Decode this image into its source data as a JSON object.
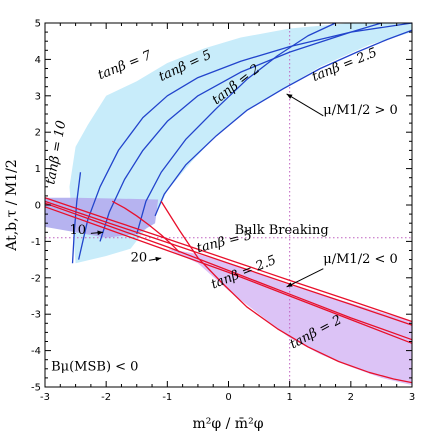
{
  "chart_data": {
    "type": "line",
    "xlabel": "m²φ / m̄²φ",
    "ylabel": "At,b,τ / M1/2",
    "xlim": [
      -3,
      3
    ],
    "ylim": [
      -5,
      5
    ],
    "xticks": [
      -3,
      -2,
      -1,
      0,
      1,
      2,
      3
    ],
    "yticks": [
      -5,
      -4,
      -3,
      -2,
      -1,
      0,
      1,
      2,
      3,
      4,
      5
    ],
    "colors": {
      "cyan_fill": "#c8ecfa",
      "violet_fill_1": "#b6b3f0",
      "violet_fill_2": "#dcc3f6",
      "blue_line": "#2244cc",
      "red_line": "#e8102c",
      "guide": "#c060c0"
    },
    "series": [
      {
        "group": "mu_over_M_positive",
        "label": "tanβ = 10",
        "x": [
          -2.55,
          -2.52,
          -2.48,
          -2.42
        ],
        "y": [
          -1.6,
          -0.7,
          0.1,
          0.9
        ]
      },
      {
        "group": "mu_over_M_positive",
        "label": "tanβ = 7",
        "x": [
          -2.45,
          -2.3,
          -2.1,
          -1.8,
          -1.4,
          -1.0,
          -0.5,
          0.2,
          1.0,
          2.0,
          3.0
        ],
        "y": [
          -1.5,
          -0.4,
          0.5,
          1.5,
          2.4,
          3.0,
          3.5,
          3.95,
          4.35,
          4.75,
          5.0
        ]
      },
      {
        "group": "mu_over_M_positive",
        "label": "tanβ = 5",
        "x": [
          -2.1,
          -1.95,
          -1.7,
          -1.4,
          -1.0,
          -0.5,
          0.2,
          1.0,
          2.0,
          2.5
        ],
        "y": [
          -1.0,
          -0.2,
          0.7,
          1.5,
          2.3,
          3.0,
          3.65,
          4.2,
          4.75,
          5.0
        ]
      },
      {
        "group": "mu_over_M_positive",
        "label": "tanβ = 2",
        "x": [
          -1.5,
          -1.35,
          -1.1,
          -0.7,
          -0.2,
          0.3,
          0.8,
          1.3,
          1.75
        ],
        "y": [
          -0.8,
          0.1,
          0.9,
          1.8,
          2.65,
          3.45,
          4.1,
          4.65,
          5.0
        ]
      },
      {
        "group": "mu_over_M_positive",
        "label": "tanβ = 2.5",
        "x": [
          -1.2,
          -1.05,
          -0.7,
          -0.2,
          0.3,
          0.9,
          1.5,
          2.1,
          2.6,
          3.0
        ],
        "y": [
          -0.3,
          0.3,
          1.1,
          1.9,
          2.6,
          3.2,
          3.75,
          4.2,
          4.55,
          4.8
        ]
      },
      {
        "group": "mu_over_M_negative",
        "label": "tanβ = 5",
        "x": [
          -3.0,
          -2.0,
          -1.0,
          0.0,
          1.0,
          2.0,
          3.0
        ],
        "y": [
          0.2,
          -0.37,
          -0.93,
          -1.5,
          -2.07,
          -2.63,
          -3.2
        ]
      },
      {
        "group": "mu_over_M_negative",
        "label": "tanβ = 5",
        "x": [
          -3.0,
          -2.0,
          -1.0,
          0.0,
          1.0,
          2.0,
          3.0
        ],
        "y": [
          0.1,
          -0.47,
          -1.03,
          -1.6,
          -2.17,
          -2.73,
          -3.3
        ]
      },
      {
        "group": "mu_over_M_negative",
        "label": "tanβ = 2.5",
        "x": [
          -3.0,
          -2.0,
          -1.0,
          0.0,
          1.0,
          2.0,
          3.0
        ],
        "y": [
          0.05,
          -0.55,
          -1.15,
          -1.8,
          -2.45,
          -3.1,
          -3.7
        ]
      },
      {
        "group": "mu_over_M_negative",
        "label": "tanβ = 2.5",
        "x": [
          -3.0,
          -2.0,
          -1.0,
          0.0,
          1.0,
          2.0,
          3.0
        ],
        "y": [
          -0.05,
          -0.65,
          -1.25,
          -1.85,
          -2.5,
          -3.15,
          -3.8
        ]
      },
      {
        "group": "mu_over_M_negative",
        "label": "tanβ = 2",
        "x": [
          -1.1,
          -0.8,
          -0.5,
          -0.1,
          0.3,
          0.8,
          1.3,
          1.8,
          2.3,
          2.7,
          3.0
        ],
        "y": [
          0.1,
          -0.7,
          -1.45,
          -2.15,
          -2.8,
          -3.4,
          -3.9,
          -4.3,
          -4.6,
          -4.78,
          -4.88
        ]
      },
      {
        "group": "mu_over_M_negative",
        "label": "",
        "x": [
          -1.9,
          -1.7,
          -1.5,
          -1.3,
          -1.1,
          -0.95,
          -0.8
        ],
        "y": [
          0.1,
          -0.08,
          -0.3,
          -0.55,
          -0.82,
          -1.05,
          -1.3
        ]
      }
    ],
    "regions": [
      {
        "name": "mu_positive_band",
        "polygon": [
          [
            -2.5,
            -1.6
          ],
          [
            -2.6,
            0.5
          ],
          [
            -2.5,
            1.6
          ],
          [
            -2.3,
            2.2
          ],
          [
            -2.0,
            3.0
          ],
          [
            -1.5,
            3.4
          ],
          [
            -1.0,
            3.9
          ],
          [
            -0.4,
            4.3
          ],
          [
            0.2,
            4.6
          ],
          [
            1.0,
            4.85
          ],
          [
            2.0,
            5.0
          ],
          [
            3.0,
            5.0
          ],
          [
            3.0,
            4.75
          ],
          [
            2.3,
            4.4
          ],
          [
            1.5,
            3.8
          ],
          [
            0.9,
            3.2
          ],
          [
            0.3,
            2.6
          ],
          [
            -0.2,
            1.9
          ],
          [
            -0.6,
            1.2
          ],
          [
            -1.0,
            0.4
          ],
          [
            -1.2,
            -0.3
          ],
          [
            -1.3,
            -0.55
          ],
          [
            -1.6,
            -1.2
          ],
          [
            -2.0,
            -1.4
          ]
        ]
      },
      {
        "name": "violet_band_upper",
        "polygon": [
          [
            -3.0,
            0.2
          ],
          [
            -2.5,
            0.2
          ],
          [
            -1.9,
            0.18
          ],
          [
            -1.15,
            0.15
          ],
          [
            -1.2,
            -0.5
          ],
          [
            -1.5,
            -0.8
          ],
          [
            -2.0,
            -0.9
          ],
          [
            -2.5,
            -0.75
          ],
          [
            -3.0,
            -0.6
          ]
        ]
      },
      {
        "name": "violet_band_lower",
        "polygon": [
          [
            -1.0,
            -1.2
          ],
          [
            -0.5,
            -1.35
          ],
          [
            0.0,
            -1.6
          ],
          [
            1.0,
            -2.2
          ],
          [
            2.0,
            -2.7
          ],
          [
            3.0,
            -3.2
          ],
          [
            3.0,
            -4.95
          ],
          [
            2.5,
            -4.75
          ],
          [
            2.0,
            -4.45
          ],
          [
            1.5,
            -4.1
          ],
          [
            1.0,
            -3.65
          ],
          [
            0.5,
            -3.0
          ],
          [
            0.0,
            -2.35
          ],
          [
            -0.5,
            -1.6
          ]
        ]
      }
    ],
    "guides": [
      {
        "kind": "vertical",
        "x": 1.0
      },
      {
        "kind": "horizontal",
        "y": -0.9
      }
    ],
    "labels": [
      {
        "text": "tanβ = 7",
        "x": -2.1,
        "y": 3.45,
        "angle": -22
      },
      {
        "text": "tanβ = 5",
        "x": -1.1,
        "y": 3.4,
        "angle": -25
      },
      {
        "text": "tanβ = 2",
        "x": -0.2,
        "y": 2.75,
        "angle": -38
      },
      {
        "text": "tanβ = 2.5",
        "x": 1.4,
        "y": 3.4,
        "angle": -22
      },
      {
        "text": "tanβ = 10",
        "x": -2.85,
        "y": 0.55,
        "angle": -80
      },
      {
        "text": "tanβ = 5",
        "x": -0.5,
        "y": -1.3,
        "angle": -14
      },
      {
        "text": "tanβ = 2.5",
        "x": -0.25,
        "y": -2.3,
        "angle": -22
      },
      {
        "text": "tanβ = 2",
        "x": 1.05,
        "y": -3.95,
        "angle": -28
      }
    ],
    "annotations": [
      {
        "text": "μ/M1/2 > 0",
        "x": 1.55,
        "y": 2.5
      },
      {
        "text": "μ/M1/2 < 0",
        "x": 1.55,
        "y": -1.6
      },
      {
        "text": "Bulk Breaking",
        "x": 0.1,
        "y": -0.8
      },
      {
        "text": "Bμ(MSB) < 0",
        "x": -2.9,
        "y": -4.55
      },
      {
        "text": "10",
        "x": -2.6,
        "y": -0.8
      },
      {
        "text": "20",
        "x": -1.6,
        "y": -1.55
      }
    ],
    "arrows": [
      {
        "from": [
          1.55,
          2.45
        ],
        "to": [
          0.95,
          3.05
        ]
      },
      {
        "from": [
          1.55,
          -1.75
        ],
        "to": [
          0.95,
          -2.25
        ]
      },
      {
        "from": [
          -2.25,
          -0.78
        ],
        "to": [
          -2.05,
          -0.75
        ]
      },
      {
        "from": [
          -1.3,
          -1.52
        ],
        "to": [
          -1.1,
          -1.46
        ]
      }
    ]
  }
}
